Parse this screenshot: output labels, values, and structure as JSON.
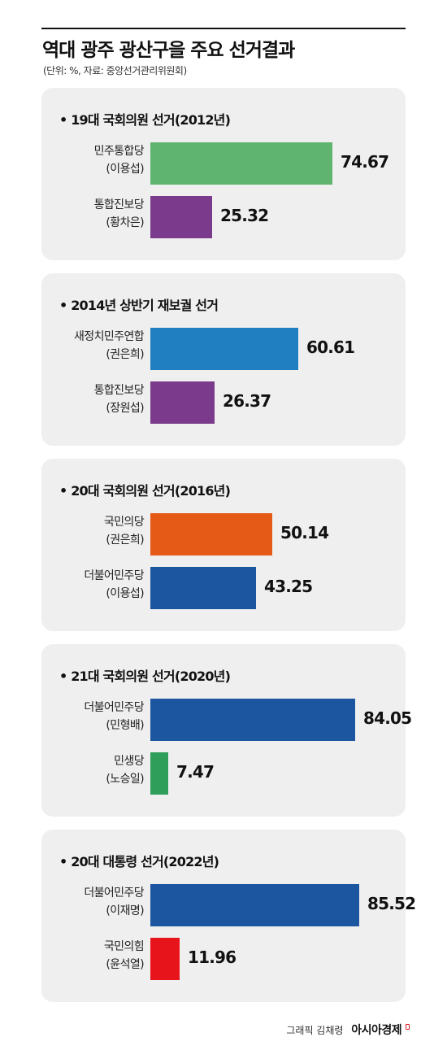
{
  "header": {
    "title": "역대 광주 광산구을 주요 선거결과",
    "subtitle": "(단위: %, 자료: 중앙선거관리위원회)"
  },
  "chart_data": [
    {
      "type": "bar",
      "title": "• 19대 국회의원 선거(2012년)",
      "categories": [
        [
          "민주통합당",
          "(이용섭)"
        ],
        [
          "통합진보당",
          "(황차은)"
        ]
      ],
      "values": [
        74.67,
        25.32
      ],
      "value_labels": [
        "74.67",
        "25.32"
      ],
      "colors": [
        "#5fb56f",
        "#7b3a8c"
      ]
    },
    {
      "type": "bar",
      "title": "• 2014년 상반기 재보궐 선거",
      "categories": [
        [
          "새정치민주연합",
          "(권은희)"
        ],
        [
          "통합진보당",
          "(장원섭)"
        ]
      ],
      "values": [
        60.61,
        26.37
      ],
      "value_labels": [
        "60.61",
        "26.37"
      ],
      "colors": [
        "#1f7fc1",
        "#7b3a8c"
      ]
    },
    {
      "type": "bar",
      "title": "• 20대 국회의원 선거(2016년)",
      "categories": [
        [
          "국민의당",
          "(권은희)"
        ],
        [
          "더불어민주당",
          "(이용섭)"
        ]
      ],
      "values": [
        50.14,
        43.25
      ],
      "value_labels": [
        "50.14",
        "43.25"
      ],
      "colors": [
        "#e55a17",
        "#1d56a0"
      ]
    },
    {
      "type": "bar",
      "title": "• 21대 국회의원 선거(2020년)",
      "categories": [
        [
          "더불어민주당",
          "(민형배)"
        ],
        [
          "민생당",
          "(노승일)"
        ]
      ],
      "values": [
        84.05,
        7.47
      ],
      "value_labels": [
        "84.05",
        "7.47"
      ],
      "colors": [
        "#1d56a0",
        "#2e9e5a"
      ]
    },
    {
      "type": "bar",
      "title": "• 20대 대통령 선거(2022년)",
      "categories": [
        [
          "더불어민주당",
          "(이재명)"
        ],
        [
          "국민의힘",
          "(윤석열)"
        ]
      ],
      "values": [
        85.52,
        11.96
      ],
      "value_labels": [
        "85.52",
        "11.96"
      ],
      "colors": [
        "#1d56a0",
        "#e8141c"
      ]
    }
  ],
  "footer": {
    "credit": "그래픽 김채령",
    "brand": "아시아경제"
  }
}
